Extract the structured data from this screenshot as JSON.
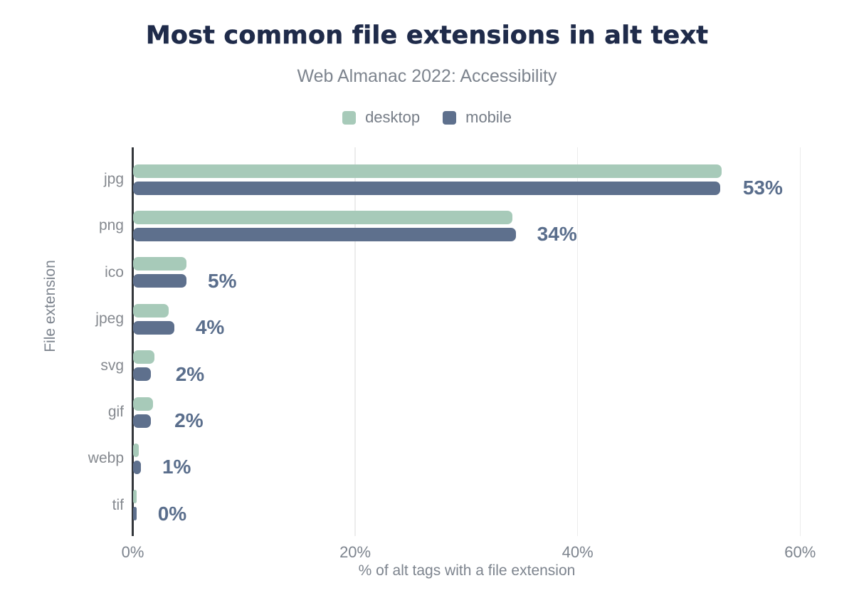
{
  "chart_data": {
    "type": "bar",
    "orientation": "horizontal",
    "title": "Most common file extensions in alt text",
    "subtitle": "Web Almanac 2022: Accessibility",
    "xlabel": "% of alt tags with a file extension",
    "ylabel": "File extension",
    "categories": [
      "jpg",
      "png",
      "ico",
      "jpeg",
      "svg",
      "gif",
      "webp",
      "tif"
    ],
    "series": [
      {
        "name": "desktop",
        "color": "#a7cab9",
        "values": [
          52.9,
          34.1,
          4.8,
          3.2,
          1.9,
          1.8,
          0.5,
          0.3
        ]
      },
      {
        "name": "mobile",
        "color": "#5e708d",
        "values": [
          52.8,
          34.4,
          4.8,
          3.7,
          1.6,
          1.6,
          0.7,
          0.3
        ]
      }
    ],
    "value_labels": [
      "53%",
      "34%",
      "5%",
      "4%",
      "2%",
      "2%",
      "1%",
      "0%"
    ],
    "xticks": {
      "values": [
        0,
        20,
        40,
        60
      ],
      "labels": [
        "0%",
        "20%",
        "40%",
        "60%"
      ]
    },
    "xlim": [
      0,
      60
    ],
    "grid": "vertical-light",
    "legend_position": "top-center",
    "colors": {
      "title": "#1f2b4a",
      "text_muted": "#7d848e",
      "value_label": "#5a6e8c",
      "axis_line": "#33363b",
      "gridline": "#ececec",
      "desktop": "#a7cab9",
      "mobile": "#5e708d",
      "background": "#ffffff"
    }
  }
}
